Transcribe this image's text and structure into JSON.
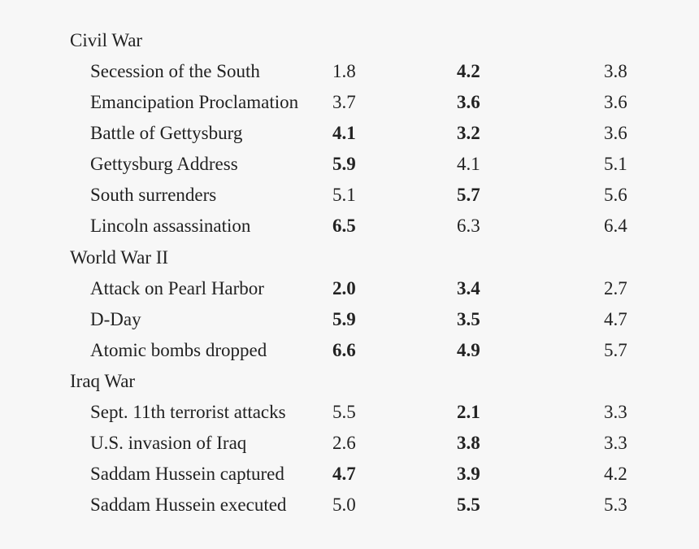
{
  "table": {
    "sections": [
      {
        "title": "Civil War",
        "rows": [
          {
            "event": "Secession of the South",
            "values": [
              "1.8",
              "4.2",
              "3.8"
            ],
            "bold": [
              false,
              true,
              false
            ]
          },
          {
            "event": "Emancipation Proclamation",
            "values": [
              "3.7",
              "3.6",
              "3.6"
            ],
            "bold": [
              false,
              true,
              false
            ]
          },
          {
            "event": "Battle of Gettysburg",
            "values": [
              "4.1",
              "3.2",
              "3.6"
            ],
            "bold": [
              true,
              true,
              false
            ]
          },
          {
            "event": "Gettysburg Address",
            "values": [
              "5.9",
              "4.1",
              "5.1"
            ],
            "bold": [
              true,
              false,
              false
            ]
          },
          {
            "event": "South surrenders",
            "values": [
              "5.1",
              "5.7",
              "5.6"
            ],
            "bold": [
              false,
              true,
              false
            ]
          },
          {
            "event": "Lincoln assassination",
            "values": [
              "6.5",
              "6.3",
              "6.4"
            ],
            "bold": [
              true,
              false,
              false
            ]
          }
        ]
      },
      {
        "title": "World War II",
        "rows": [
          {
            "event": "Attack on Pearl Harbor",
            "values": [
              "2.0",
              "3.4",
              "2.7"
            ],
            "bold": [
              true,
              true,
              false
            ]
          },
          {
            "event": "D-Day",
            "values": [
              "5.9",
              "3.5",
              "4.7"
            ],
            "bold": [
              true,
              true,
              false
            ]
          },
          {
            "event": "Atomic bombs dropped",
            "values": [
              "6.6",
              "4.9",
              "5.7"
            ],
            "bold": [
              true,
              true,
              false
            ]
          }
        ]
      },
      {
        "title": "Iraq War",
        "rows": [
          {
            "event": "Sept. 11th terrorist attacks",
            "values": [
              "5.5",
              "2.1",
              "3.3"
            ],
            "bold": [
              false,
              true,
              false
            ]
          },
          {
            "event": "U.S. invasion of Iraq",
            "values": [
              "2.6",
              "3.8",
              "3.3"
            ],
            "bold": [
              false,
              true,
              false
            ]
          },
          {
            "event": "Saddam Hussein captured",
            "values": [
              "4.7",
              "3.9",
              "4.2"
            ],
            "bold": [
              true,
              true,
              false
            ]
          },
          {
            "event": "Saddam Hussein executed",
            "values": [
              "5.0",
              "5.5",
              "5.3"
            ],
            "bold": [
              false,
              true,
              false
            ]
          }
        ]
      }
    ]
  }
}
